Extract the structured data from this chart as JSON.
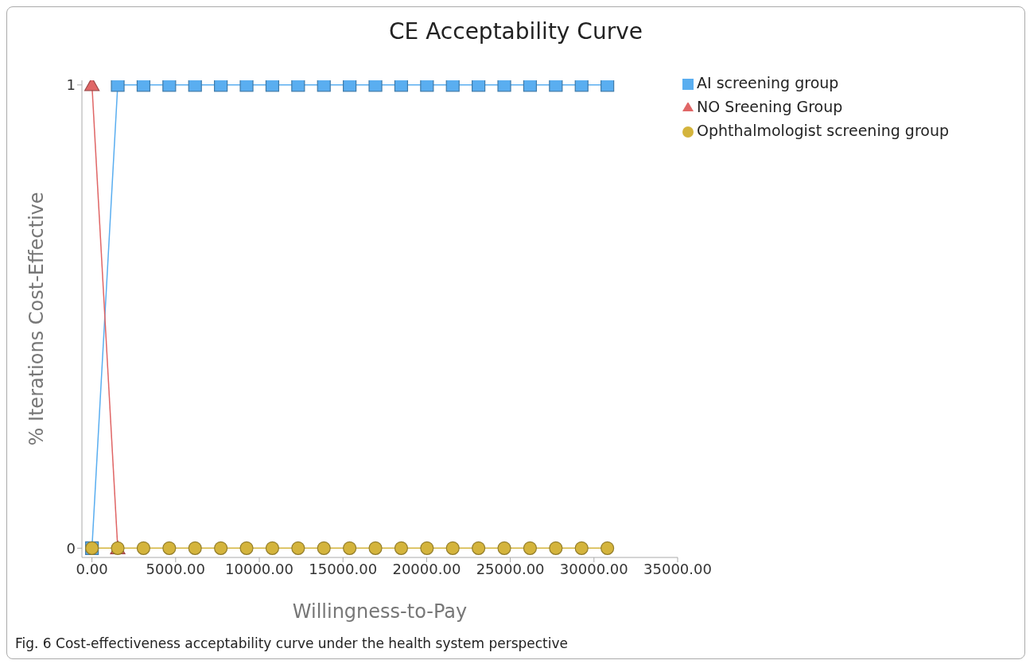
{
  "chart_data": {
    "type": "line",
    "title": "CE Acceptability Curve",
    "xlabel": "Willingness-to-Pay",
    "ylabel": "% Iterations Cost-Effective",
    "x": [
      0,
      1540,
      3080,
      4620,
      6160,
      7700,
      9240,
      10780,
      12320,
      13860,
      15400,
      16940,
      18480,
      20020,
      21560,
      23100,
      24640,
      26180,
      27720,
      29260,
      30800
    ],
    "series": [
      {
        "name": "AI screening group",
        "color": "#5aaef0",
        "marker": "square",
        "values": [
          0,
          1,
          1,
          1,
          1,
          1,
          1,
          1,
          1,
          1,
          1,
          1,
          1,
          1,
          1,
          1,
          1,
          1,
          1,
          1,
          1
        ]
      },
      {
        "name": "NO Sreening Group",
        "color": "#e06666",
        "marker": "triangle",
        "values": [
          1,
          0,
          null,
          null,
          null,
          null,
          null,
          null,
          null,
          null,
          null,
          null,
          null,
          null,
          null,
          null,
          null,
          null,
          null,
          null,
          null
        ]
      },
      {
        "name": "Ophthalmologist screening  group",
        "color": "#d4b43c",
        "marker": "circle",
        "values": [
          0,
          0,
          0,
          0,
          0,
          0,
          0,
          0,
          0,
          0,
          0,
          0,
          0,
          0,
          0,
          0,
          0,
          0,
          0,
          0,
          0
        ]
      }
    ],
    "xlim": [
      -600,
      35000
    ],
    "xticks": [
      {
        "value": 0,
        "label": "0.00"
      },
      {
        "value": 5000,
        "label": "5000.00"
      },
      {
        "value": 10000,
        "label": "10000.00"
      },
      {
        "value": 15000,
        "label": "15000.00"
      },
      {
        "value": 20000,
        "label": "20000.00"
      },
      {
        "value": 25000,
        "label": "25000.00"
      },
      {
        "value": 30000,
        "label": "30000.00"
      },
      {
        "value": 35000,
        "label": "35000.00"
      }
    ],
    "ylim": [
      -0.02,
      1.01
    ],
    "yticks": [
      0,
      1
    ],
    "grid": false,
    "legend": "top right",
    "line_style": "solid",
    "annotations": [
      "Fig. 6 Cost-effectiveness acceptability curve under the health system perspective"
    ]
  }
}
